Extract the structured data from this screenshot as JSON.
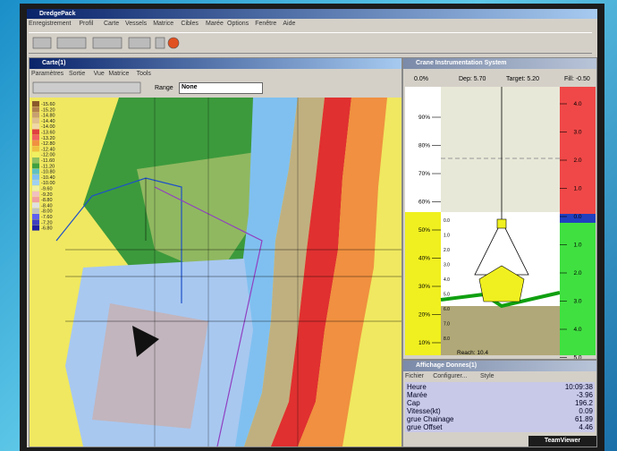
{
  "app": {
    "title": "DredgePack",
    "menu": [
      "Enregistrement",
      "Profil",
      "Carte",
      "Vessels",
      "Matrice",
      "Cibles",
      "Marée",
      "Options",
      "Fenêtre",
      "Aide"
    ]
  },
  "map_window": {
    "title": "Carte(1)",
    "menu": [
      "Paramètres",
      "Sortie",
      "Vue",
      "Matrice",
      "Tools"
    ],
    "range_label": "Range",
    "range_value": "None",
    "legend": [
      {
        "label": "-15.60",
        "color": "#8b5a2b"
      },
      {
        "label": "-15.20",
        "color": "#b08050"
      },
      {
        "label": "-14.80",
        "color": "#c8a070"
      },
      {
        "label": "-14.40",
        "color": "#e0c090"
      },
      {
        "label": "-14.00",
        "color": "#f0d8a8"
      },
      {
        "label": "-13.60",
        "color": "#e04040"
      },
      {
        "label": "-13.20",
        "color": "#f06060"
      },
      {
        "label": "-12.80",
        "color": "#f09040"
      },
      {
        "label": "-12.40",
        "color": "#f0c040"
      },
      {
        "label": "-12.00",
        "color": "#f0f060"
      },
      {
        "label": "-11.60",
        "color": "#90c060"
      },
      {
        "label": "-11.20",
        "color": "#40a040"
      },
      {
        "label": "-10.80",
        "color": "#60c0c0"
      },
      {
        "label": "-10.40",
        "color": "#80c0f0"
      },
      {
        "label": "-10.00",
        "color": "#a0d0f0"
      },
      {
        "label": "-9.60",
        "color": "#f0f0a0"
      },
      {
        "label": "-9.20",
        "color": "#f0c0c0"
      },
      {
        "label": "-8.80",
        "color": "#f0a0a0"
      },
      {
        "label": "-8.40",
        "color": "#e0e0e0"
      },
      {
        "label": "-8.00",
        "color": "#c0c0c0"
      },
      {
        "label": "-7.60",
        "color": "#6060f0"
      },
      {
        "label": "-7.20",
        "color": "#4040c0"
      },
      {
        "label": "-6.80",
        "color": "#2020a0"
      }
    ]
  },
  "crane_window": {
    "title": "Crane Instrumentation System",
    "fill_pct": "0.0%",
    "depth": "Dep: 5.70",
    "target": "Target: 5.20",
    "fill": "Fill: -0.50",
    "pct_ticks": [
      "90%",
      "80%",
      "70%",
      "60%",
      "50%",
      "40%",
      "30%",
      "20%",
      "10%"
    ],
    "depth_ticks": [
      "4.0",
      "3.0",
      "2.0",
      "1.0",
      "0.0",
      "1.0",
      "2.0",
      "3.0",
      "4.0",
      "5.0"
    ],
    "inner_ticks": [
      "0.0",
      "1.0",
      "2.0",
      "3.0",
      "4.0",
      "5.0",
      "6.0",
      "7.0",
      "8.0"
    ],
    "reach": "Reach: 10.4"
  },
  "data_window": {
    "title": "Affichage Donnes(1)",
    "menu": [
      "Fichier",
      "Configurer...",
      "Style"
    ],
    "rows": [
      [
        "Heure",
        "10:09:38"
      ],
      [
        "Marée",
        "-3.96"
      ],
      [
        "Cap",
        "196.2"
      ],
      [
        "Vitesse(kt)",
        "0.09"
      ],
      [
        "grue Chainage",
        "61.89"
      ],
      [
        "grue Offset",
        "4.46"
      ]
    ]
  },
  "teamviewer": "TeamViewer"
}
